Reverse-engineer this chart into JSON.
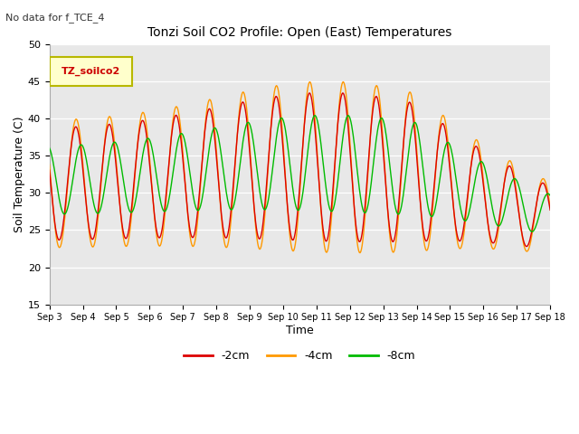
{
  "title": "Tonzi Soil CO2 Profile: Open (East) Temperatures",
  "subtitle": "No data for f_TCE_4",
  "xlabel": "Time",
  "ylabel": "Soil Temperature (C)",
  "ylim": [
    15,
    50
  ],
  "xlim": [
    0,
    15
  ],
  "xtick_labels": [
    "Sep 3",
    "Sep 4",
    "Sep 5",
    "Sep 6",
    "Sep 7",
    "Sep 8",
    "Sep 9",
    "Sep 10",
    "Sep 11",
    "Sep 12",
    "Sep 13",
    "Sep 14",
    "Sep 15",
    "Sep 16",
    "Sep 17",
    "Sep 18"
  ],
  "bg_outer": "#ffffff",
  "bg_plot": "#e8e8e8",
  "legend_label": "TZ_soilco2",
  "legend_bg": "#ffffcc",
  "legend_border": "#b8b800",
  "line_colors": {
    "2cm": "#dd0000",
    "4cm": "#ff9900",
    "8cm": "#00bb00"
  },
  "series_labels": [
    "-2cm",
    "-4cm",
    "-8cm"
  ],
  "yticks": [
    15,
    20,
    25,
    30,
    35,
    40,
    45,
    50
  ]
}
